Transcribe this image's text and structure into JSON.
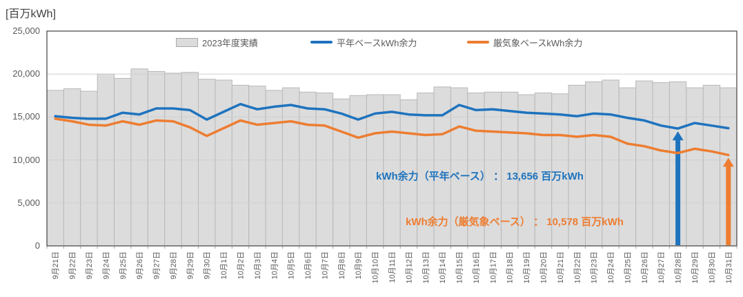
{
  "title": "[百万kWh]",
  "legend": {
    "bar_label": "2023年度実績",
    "blue_label": "平年ベースkWh余力",
    "orange_label": "厳気象ベースkWh余力"
  },
  "annotations": {
    "normal_text": "kWh余力（平年ベース） ： 13,656 百万kWh",
    "severe_text": "kWh余力（厳気象ベース） ： 10,578 百万kWh"
  },
  "colors": {
    "blue": "#1e73be",
    "orange": "#ed7d31",
    "bar_fill": "#dcdcdc",
    "bar_border": "#b8b8b8",
    "grid": "#cfcfcf",
    "axis_text": "#595959",
    "plot_border": "#404040"
  },
  "chart_data": {
    "type": "bar+line combo",
    "ylabel": "[百万kWh]",
    "ylim": [
      0,
      25000
    ],
    "yticks": [
      0,
      5000,
      10000,
      15000,
      20000,
      25000
    ],
    "ytick_labels": [
      "0",
      "5,000",
      "10,000",
      "15,000",
      "20,000",
      "25,000"
    ],
    "grid": "horizontal",
    "legend_position": "top-inside",
    "categories": [
      "9月21日",
      "9月22日",
      "9月23日",
      "9月24日",
      "9月25日",
      "9月26日",
      "9月27日",
      "9月28日",
      "9月29日",
      "9月30日",
      "10月1日",
      "10月2日",
      "10月3日",
      "10月4日",
      "10月5日",
      "10月6日",
      "10月7日",
      "10月8日",
      "10月9日",
      "10月10日",
      "10月11日",
      "10月12日",
      "10月13日",
      "10月14日",
      "10月15日",
      "10月16日",
      "10月17日",
      "10月18日",
      "10月19日",
      "10月20日",
      "10月21日",
      "10月22日",
      "10月23日",
      "10月24日",
      "10月25日",
      "10月26日",
      "10月27日",
      "10月28日",
      "10月29日",
      "10月30日",
      "10月31日"
    ],
    "series": [
      {
        "name": "2023年度実績",
        "type": "bar",
        "values": [
          18100,
          18300,
          18000,
          20000,
          19500,
          20600,
          20300,
          20100,
          20200,
          19400,
          19300,
          18700,
          18600,
          18100,
          18400,
          17900,
          17800,
          17100,
          17500,
          17600,
          17600,
          17000,
          17800,
          18500,
          18400,
          17800,
          17900,
          17900,
          17600,
          17800,
          17700,
          18700,
          19100,
          19300,
          18400,
          19200,
          19000,
          19100,
          18400,
          18700,
          18400
        ]
      },
      {
        "name": "平年ベースkWh余力",
        "type": "line",
        "values": [
          15100,
          14900,
          14800,
          14800,
          15500,
          15300,
          16000,
          16000,
          15800,
          14700,
          15600,
          16500,
          15900,
          16200,
          16400,
          16000,
          15900,
          15400,
          14700,
          15400,
          15600,
          15300,
          15200,
          15200,
          16400,
          15800,
          15900,
          15700,
          15500,
          15400,
          15300,
          15100,
          15400,
          15300,
          14900,
          14600,
          14000,
          13656,
          14300,
          14000,
          13700
        ]
      },
      {
        "name": "厳気象ベースkWh余力",
        "type": "line",
        "values": [
          14800,
          14500,
          14100,
          14000,
          14500,
          14100,
          14600,
          14500,
          13800,
          12800,
          13700,
          14600,
          14100,
          14300,
          14500,
          14100,
          14000,
          13300,
          12600,
          13100,
          13300,
          13100,
          12900,
          13000,
          13900,
          13400,
          13300,
          13200,
          13100,
          12900,
          12900,
          12700,
          12900,
          12700,
          11900,
          11600,
          11100,
          10800,
          11300,
          11000,
          10578
        ]
      }
    ],
    "arrow_annotations": [
      {
        "category": "10月28日",
        "series": "平年ベースkWh余力",
        "value": 13656,
        "color_key": "blue"
      },
      {
        "category": "10月31日",
        "series": "厳気象ベースkWh余力",
        "value": 10578,
        "color_key": "orange"
      }
    ]
  }
}
